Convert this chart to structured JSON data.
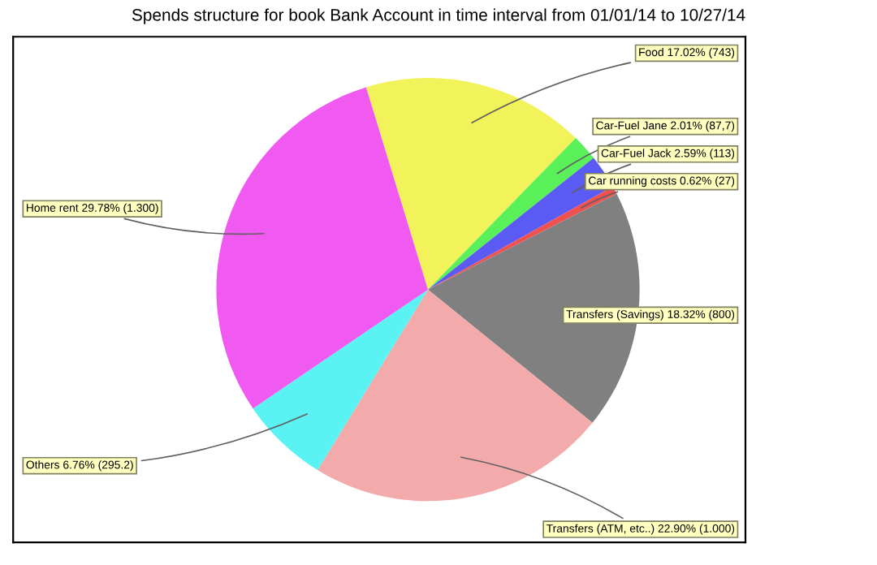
{
  "chart_data": {
    "type": "pie",
    "title": "Spends structure for book Bank Account in time interval from 01/01/14 to 10/27/14",
    "categories": [
      "Food",
      "Car-Fuel Jane",
      "Car-Fuel Jack",
      "Car running costs",
      "Transfers (Savings)",
      "Transfers (ATM, etc..)",
      "Others",
      "Home rent"
    ],
    "values": [
      17.02,
      2.01,
      2.59,
      0.62,
      18.32,
      22.9,
      6.76,
      29.78
    ],
    "value_labels": [
      "17.02% (743)",
      "2.01% (87,7)",
      "2.59% (113)",
      "0.62% (27)",
      "18.32% (800)",
      "22.90% (1.000)",
      "6.76% (295.2)",
      "29.78% (1.300)"
    ],
    "colors": [
      "#f2f25a",
      "#5af05a",
      "#5a5af5",
      "#f05050",
      "#808080",
      "#f2aaaa",
      "#5af2f2",
      "#f05af0"
    ],
    "legend": false
  }
}
